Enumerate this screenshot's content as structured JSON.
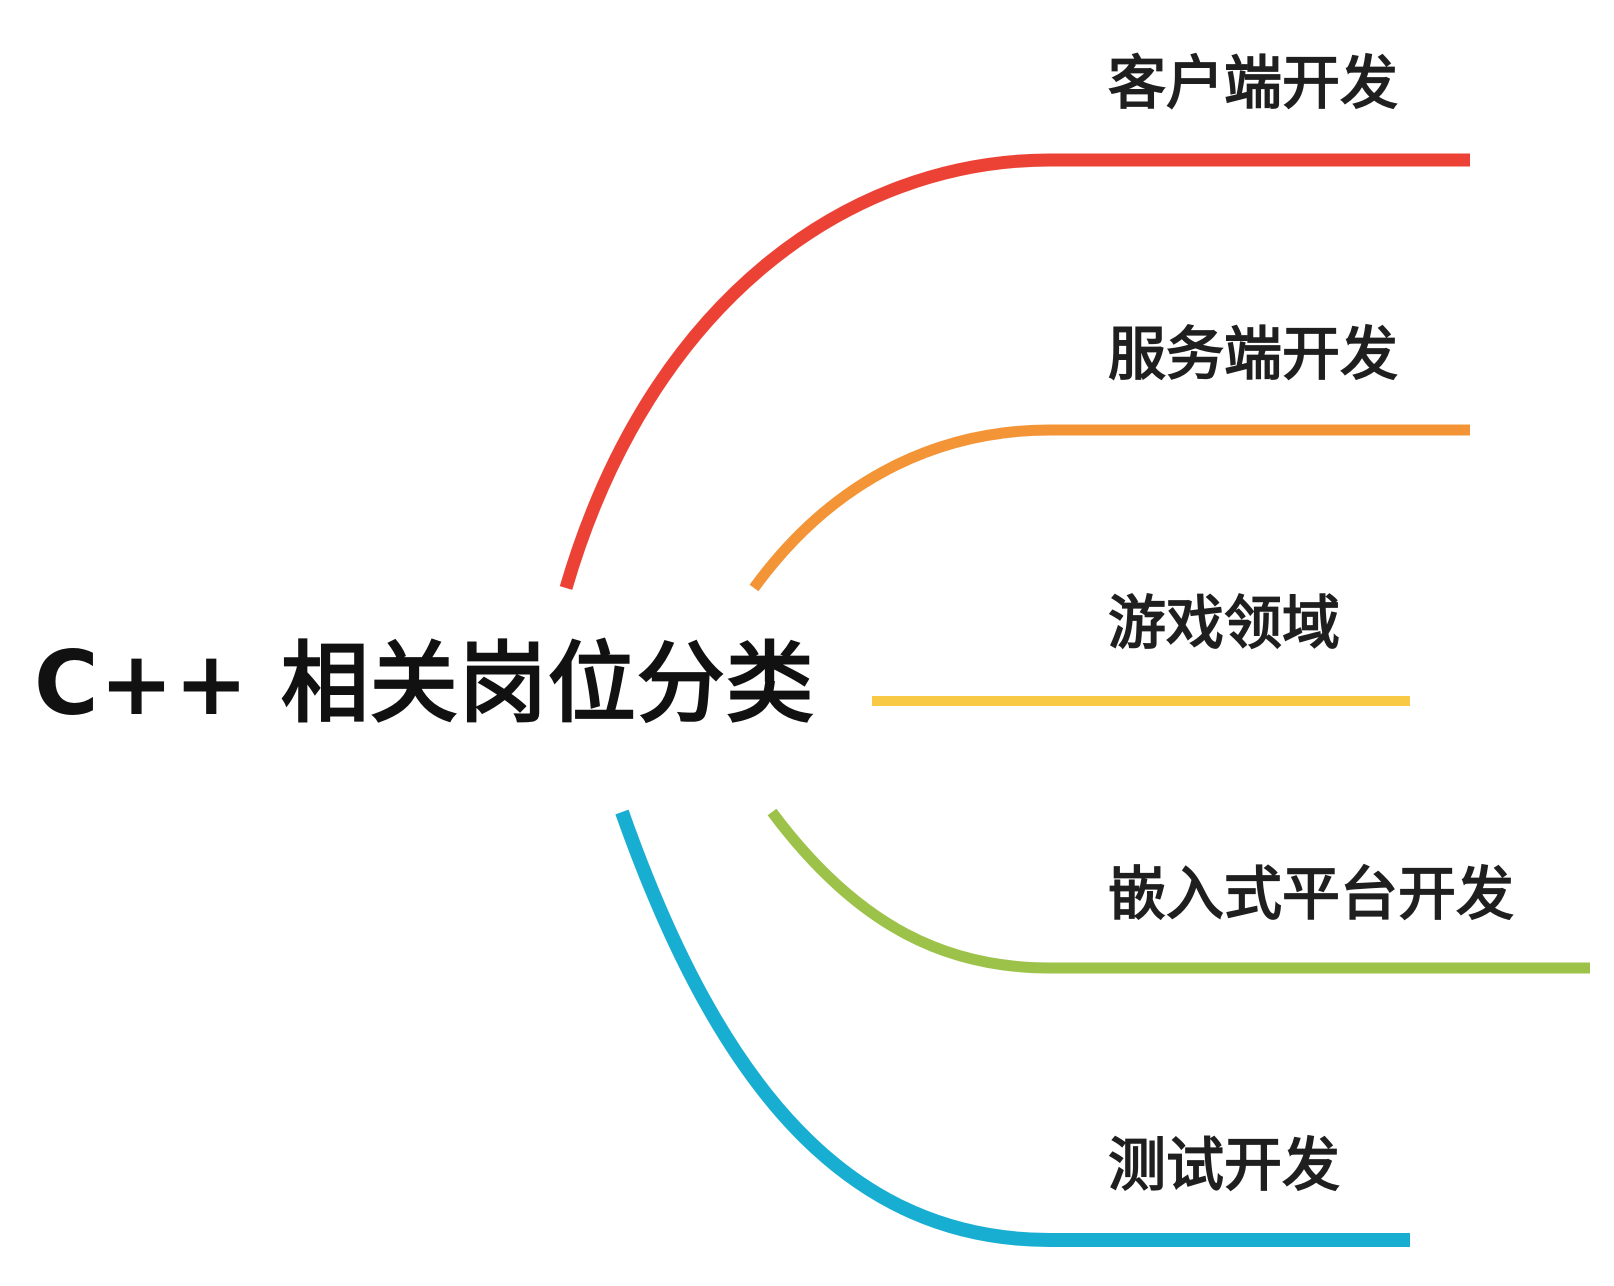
{
  "central_topic": "C++ 相关岗位分类",
  "branches": [
    {
      "label": "客户端开发",
      "color": "#ec4236"
    },
    {
      "label": "服务端开发",
      "color": "#f39436"
    },
    {
      "label": "游戏领域",
      "color": "#f7c944"
    },
    {
      "label": "嵌入式平台开发",
      "color": "#9cc24a"
    },
    {
      "label": "测试开发",
      "color": "#18aed2"
    }
  ]
}
